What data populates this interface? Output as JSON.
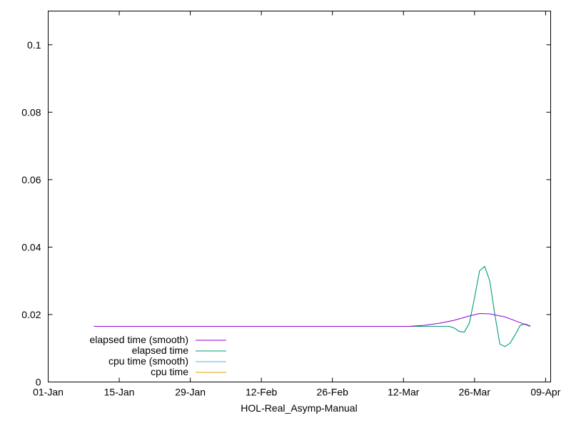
{
  "chart_data": {
    "type": "line",
    "title": "",
    "xlabel": "HOL-Real_Asymp-Manual",
    "ylabel": "",
    "xlim": [
      "2000-01-01",
      "2000-04-09"
    ],
    "ylim": [
      0,
      0.11
    ],
    "x_ticks": [
      "01-Jan",
      "15-Jan",
      "29-Jan",
      "12-Feb",
      "26-Feb",
      "12-Mar",
      "26-Mar",
      "09-Apr"
    ],
    "y_ticks": [
      "0",
      "0.02",
      "0.04",
      "0.06",
      "0.08",
      "0.1"
    ],
    "grid": false,
    "legend_position": "bottom-left",
    "series": [
      {
        "name": "elapsed time (smooth)",
        "color": "#9400d3",
        "points": [
          [
            "2000-01-10",
            0.0165
          ],
          [
            "2000-03-12",
            0.0165
          ],
          [
            "2000-03-15",
            0.0168
          ],
          [
            "2000-03-18",
            0.0174
          ],
          [
            "2000-03-21",
            0.0183
          ],
          [
            "2000-03-24",
            0.0196
          ],
          [
            "2000-03-26",
            0.0203
          ],
          [
            "2000-03-28",
            0.0202
          ],
          [
            "2000-03-31",
            0.0193
          ],
          [
            "2000-04-03",
            0.0176
          ],
          [
            "2000-04-05",
            0.0165
          ]
        ]
      },
      {
        "name": "elapsed time",
        "color": "#009e73",
        "points": [
          [
            "2000-01-10",
            0.0165
          ],
          [
            "2000-03-20",
            0.0165
          ],
          [
            "2000-03-21",
            0.016
          ],
          [
            "2000-03-22",
            0.015
          ],
          [
            "2000-03-23",
            0.0148
          ],
          [
            "2000-03-24",
            0.0175
          ],
          [
            "2000-03-25",
            0.025
          ],
          [
            "2000-03-26",
            0.033
          ],
          [
            "2000-03-27",
            0.0343
          ],
          [
            "2000-03-28",
            0.03
          ],
          [
            "2000-03-29",
            0.02
          ],
          [
            "2000-03-30",
            0.0112
          ],
          [
            "2000-03-31",
            0.0105
          ],
          [
            "2000-04-01",
            0.0115
          ],
          [
            "2000-04-02",
            0.014
          ],
          [
            "2000-04-03",
            0.0168
          ],
          [
            "2000-04-04",
            0.0172
          ],
          [
            "2000-04-05",
            0.0166
          ]
        ]
      },
      {
        "name": "cpu time (smooth)",
        "color": "#56b4e9",
        "points": [
          [
            "2000-01-10",
            0.0165
          ],
          [
            "2000-03-20",
            0.0165
          ],
          [
            "2000-03-21",
            0.016
          ],
          [
            "2000-03-22",
            0.015
          ],
          [
            "2000-03-23",
            0.0148
          ],
          [
            "2000-03-24",
            0.0175
          ],
          [
            "2000-03-25",
            0.025
          ],
          [
            "2000-03-26",
            0.033
          ],
          [
            "2000-03-27",
            0.0343
          ],
          [
            "2000-03-28",
            0.03
          ],
          [
            "2000-03-29",
            0.02
          ],
          [
            "2000-03-30",
            0.0112
          ],
          [
            "2000-03-31",
            0.0105
          ],
          [
            "2000-04-01",
            0.0115
          ],
          [
            "2000-04-02",
            0.014
          ],
          [
            "2000-04-03",
            0.0168
          ],
          [
            "2000-04-04",
            0.0172
          ],
          [
            "2000-04-05",
            0.0166
          ]
        ]
      },
      {
        "name": "cpu time",
        "color": "#e69f00",
        "points": []
      }
    ]
  }
}
